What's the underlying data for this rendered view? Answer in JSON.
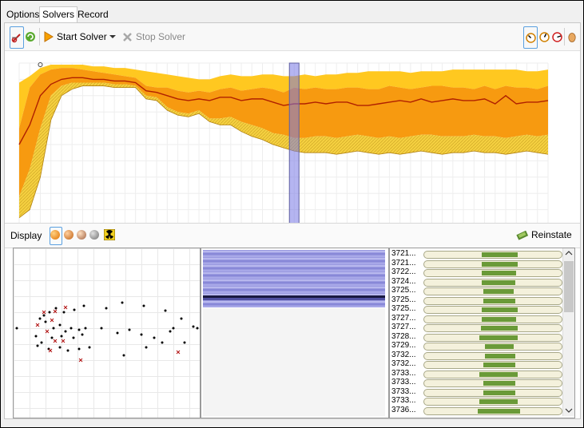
{
  "tabs": [
    {
      "label": "Options",
      "active": false
    },
    {
      "label": "Solvers",
      "active": true
    },
    {
      "label": "Record",
      "active": false
    }
  ],
  "toolbar": {
    "start_label": "Start Solver",
    "stop_label": "Stop Solver"
  },
  "chart_data": {
    "type": "area",
    "x_ticks": [
      0,
      1,
      2,
      3,
      4,
      5,
      6,
      7,
      8,
      9,
      10,
      12,
      14,
      16,
      18,
      20,
      22,
      24,
      26,
      28,
      30,
      32,
      34,
      36,
      38,
      40,
      42,
      44,
      46,
      48,
      50
    ],
    "selected_x": 26,
    "ylim": [
      0,
      100
    ],
    "series": [
      {
        "role": "outer-upper",
        "values": [
          88,
          92,
          97,
          99,
          99,
          99,
          99,
          98,
          98,
          97,
          97,
          96,
          95,
          94,
          93,
          92,
          91,
          90,
          90,
          92,
          93,
          92,
          92,
          93,
          93,
          92,
          92,
          93,
          92,
          93,
          93,
          94,
          94,
          95,
          95,
          95,
          95,
          94,
          95,
          95,
          95,
          96,
          96,
          96,
          96,
          96,
          96,
          96,
          95,
          95,
          96
        ]
      },
      {
        "role": "inner-upper",
        "values": [
          60,
          85,
          93,
          96,
          97,
          97,
          96,
          95,
          94,
          93,
          92,
          91,
          86,
          85,
          85,
          83,
          82,
          83,
          82,
          84,
          85,
          83,
          84,
          85,
          84,
          82,
          85,
          84,
          85,
          84,
          84,
          85,
          85,
          84,
          84,
          86,
          85,
          84,
          85,
          86,
          86,
          85,
          85,
          84,
          86,
          84,
          86,
          85,
          85,
          84,
          86
        ]
      },
      {
        "role": "mean",
        "values": [
          50,
          62,
          80,
          87,
          90,
          91,
          91,
          90,
          90,
          89,
          89,
          88,
          83,
          82,
          80,
          78,
          77,
          78,
          77,
          79,
          79,
          77,
          78,
          78,
          76,
          74,
          75,
          75,
          76,
          75,
          76,
          76,
          74,
          74,
          75,
          76,
          77,
          76,
          78,
          76,
          77,
          78,
          77,
          77,
          78,
          75,
          80,
          75,
          76,
          76,
          77
        ]
      },
      {
        "role": "inner-lower",
        "values": [
          18,
          35,
          60,
          80,
          86,
          88,
          88,
          88,
          88,
          87,
          87,
          86,
          80,
          79,
          73,
          70,
          69,
          71,
          66,
          66,
          67,
          64,
          62,
          60,
          57,
          56,
          54,
          54,
          55,
          55,
          54,
          55,
          56,
          55,
          54,
          55,
          54,
          55,
          56,
          56,
          55,
          55,
          55,
          56,
          55,
          55,
          54,
          55,
          56,
          55,
          56
        ]
      },
      {
        "role": "outer-lower",
        "values": [
          5,
          10,
          30,
          65,
          80,
          84,
          86,
          86,
          86,
          85,
          85,
          85,
          78,
          77,
          71,
          68,
          67,
          69,
          64,
          62,
          62,
          58,
          55,
          53,
          50,
          48,
          46,
          45,
          45,
          45,
          44,
          45,
          46,
          45,
          44,
          45,
          44,
          45,
          46,
          45,
          44,
          45,
          45,
          46,
          45,
          45,
          44,
          45,
          46,
          45,
          44
        ]
      }
    ]
  },
  "display": {
    "label": "Display",
    "reinstate_label": "Reinstate"
  },
  "list": {
    "rows": [
      {
        "label": "3721...",
        "start": 0.42,
        "end": 0.68
      },
      {
        "label": "3721...",
        "start": 0.42,
        "end": 0.68
      },
      {
        "label": "3722...",
        "start": 0.42,
        "end": 0.67
      },
      {
        "label": "3724...",
        "start": 0.42,
        "end": 0.66
      },
      {
        "label": "3725...",
        "start": 0.43,
        "end": 0.65
      },
      {
        "label": "3725...",
        "start": 0.43,
        "end": 0.66
      },
      {
        "label": "3725...",
        "start": 0.42,
        "end": 0.68
      },
      {
        "label": "3727...",
        "start": 0.42,
        "end": 0.67
      },
      {
        "label": "3727...",
        "start": 0.41,
        "end": 0.68
      },
      {
        "label": "3728...",
        "start": 0.4,
        "end": 0.68
      },
      {
        "label": "3729...",
        "start": 0.44,
        "end": 0.65
      },
      {
        "label": "3732...",
        "start": 0.44,
        "end": 0.66
      },
      {
        "label": "3732...",
        "start": 0.43,
        "end": 0.66
      },
      {
        "label": "3733...",
        "start": 0.4,
        "end": 0.68
      },
      {
        "label": "3733...",
        "start": 0.43,
        "end": 0.66
      },
      {
        "label": "3733...",
        "start": 0.43,
        "end": 0.66
      },
      {
        "label": "3733...",
        "start": 0.4,
        "end": 0.68
      },
      {
        "label": "3736...",
        "start": 0.39,
        "end": 0.7
      }
    ]
  }
}
